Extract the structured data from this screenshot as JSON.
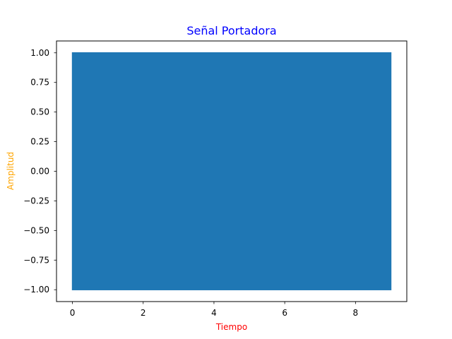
{
  "chart_data": {
    "type": "line",
    "title": "Señal Portadora",
    "xlabel": "Tiempo",
    "ylabel": "Amplitud",
    "xlim": [
      -0.45,
      9.45
    ],
    "ylim": [
      -1.1,
      1.1
    ],
    "xticks": [
      0,
      2,
      4,
      6,
      8
    ],
    "xtick_labels": [
      "0",
      "2",
      "4",
      "6",
      "8"
    ],
    "yticks": [
      1.0,
      0.75,
      0.5,
      0.25,
      0.0,
      -0.25,
      -0.5,
      -0.75,
      -1.0
    ],
    "ytick_labels": [
      "1.00",
      "0.75",
      "0.50",
      "0.25",
      "0.00",
      "−0.25",
      "−0.50",
      "−0.75",
      "−1.00"
    ],
    "grid": false,
    "series": [
      {
        "color": "#1f77b4",
        "x_range": [
          0,
          9
        ],
        "amplitude": 1.0,
        "visible_as": "solid band between -1 and 1 (high-frequency carrier)"
      }
    ],
    "colors": {
      "title": "#0000ff",
      "xlabel": "#ff0000",
      "ylabel": "#ffa500"
    }
  }
}
